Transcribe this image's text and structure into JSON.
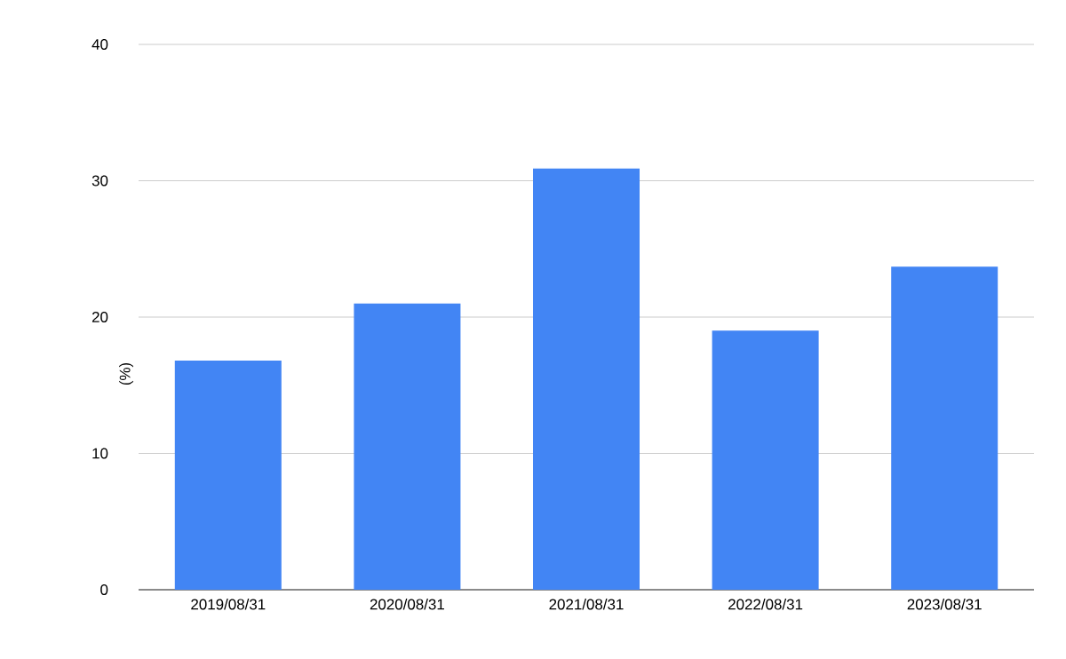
{
  "chart_data": {
    "type": "bar",
    "ylabel": "(%)",
    "categories": [
      "2019/08/31",
      "2020/08/31",
      "2021/08/31",
      "2022/08/31",
      "2023/08/31"
    ],
    "values": [
      16.8,
      21.0,
      30.9,
      19.0,
      23.7
    ],
    "color": "#4285f4",
    "ylim": [
      0,
      40
    ],
    "yticks": [
      0,
      10,
      20,
      30,
      40
    ],
    "grid": "y"
  }
}
